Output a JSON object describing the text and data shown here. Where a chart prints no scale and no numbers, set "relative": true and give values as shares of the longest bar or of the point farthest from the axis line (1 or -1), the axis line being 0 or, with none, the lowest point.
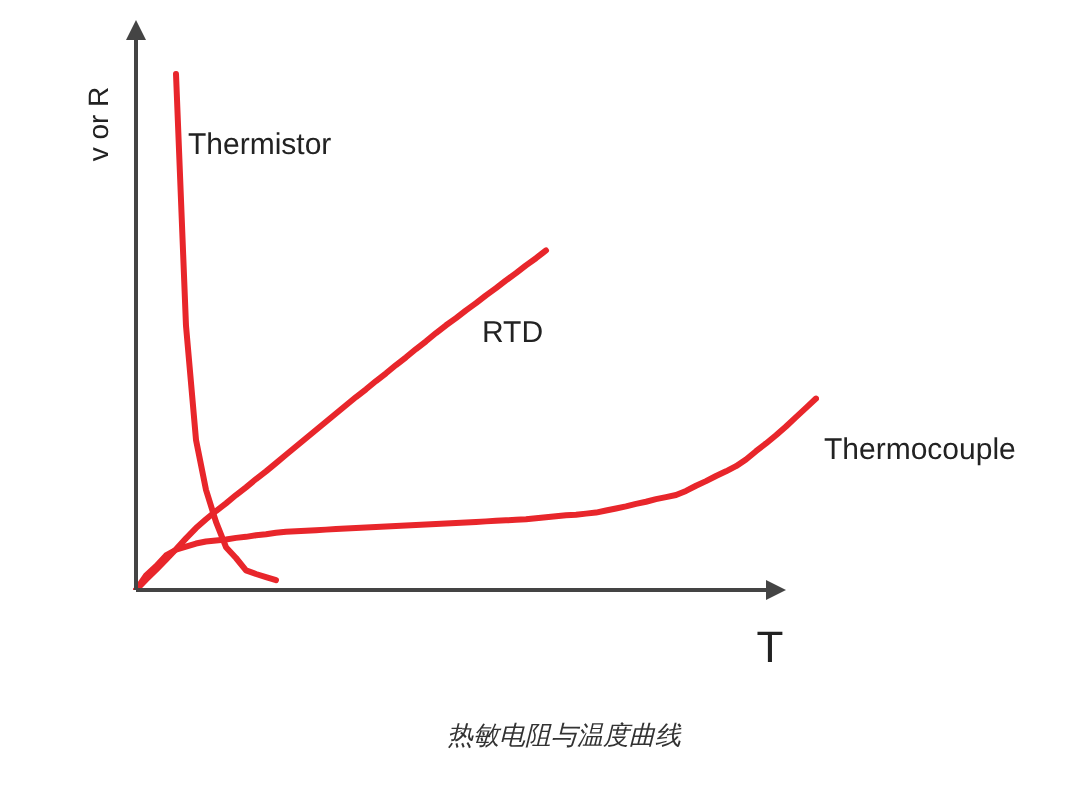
{
  "chart_data": {
    "type": "line",
    "relative": true,
    "xlabel": "T",
    "ylabel": "v or R",
    "legend": false,
    "marker": "none",
    "line_style": "solid",
    "categories": [
      null,
      null,
      null,
      null,
      null,
      null,
      null,
      null,
      null,
      null,
      null,
      null,
      null,
      null,
      null,
      null,
      null,
      null,
      null,
      null,
      null,
      null,
      null,
      null,
      null,
      null,
      null,
      null,
      null,
      null,
      null,
      null,
      null,
      null,
      null,
      null,
      null,
      null,
      null,
      null,
      null,
      null,
      null,
      null,
      null,
      null,
      null,
      null,
      null,
      null,
      null,
      null,
      null,
      null,
      null,
      null,
      null,
      null,
      null,
      null,
      null,
      null,
      null,
      null,
      null,
      null,
      null,
      null,
      null
    ],
    "series": [
      {
        "name": "Thermistor",
        "color": "#e8262b",
        "values": [
          null,
          null,
          null,
          null,
          1,
          0.512,
          0.291,
          0.194,
          0.132,
          0.083,
          0.062,
          0.038,
          0.031,
          0.025,
          0.019,
          null,
          null,
          null,
          null,
          null,
          null,
          null,
          null,
          null,
          null,
          null,
          null,
          null,
          null,
          null,
          null,
          null,
          null,
          null,
          null,
          null,
          null,
          null,
          null,
          null,
          null,
          null,
          null,
          null,
          null,
          null,
          null,
          null,
          null,
          null,
          null,
          null,
          null,
          null,
          null,
          null,
          null,
          null,
          null,
          null,
          null,
          null,
          null,
          null,
          null,
          null,
          null,
          null,
          null
        ]
      },
      {
        "name": "RTD",
        "color": "#e8262b",
        "values": [
          0,
          0.02,
          0.039,
          0.059,
          0.079,
          0.1,
          0.12,
          0.137,
          0.153,
          0.168,
          0.184,
          0.199,
          0.215,
          0.23,
          0.246,
          0.262,
          0.278,
          0.294,
          0.31,
          0.326,
          0.342,
          0.358,
          0.374,
          0.389,
          0.405,
          0.42,
          0.436,
          0.451,
          0.467,
          0.482,
          0.498,
          0.513,
          0.527,
          0.542,
          0.556,
          0.571,
          0.585,
          0.6,
          0.614,
          0.629,
          0.643,
          0.658,
          null,
          null,
          null,
          null,
          null,
          null,
          null,
          null,
          null,
          null,
          null,
          null,
          null,
          null,
          null,
          null,
          null,
          null,
          null,
          null,
          null,
          null,
          null,
          null,
          null,
          null,
          null
        ]
      },
      {
        "name": "Thermocouple",
        "color": "#e8262b",
        "values": [
          0,
          0.028,
          0.046,
          0.067,
          0.078,
          0.084,
          0.09,
          0.094,
          0.096,
          0.098,
          0.101,
          0.103,
          0.106,
          0.108,
          0.111,
          0.113,
          0.114,
          0.115,
          0.116,
          0.117,
          0.118,
          0.119,
          0.12,
          0.121,
          0.122,
          0.123,
          0.124,
          0.125,
          0.126,
          0.127,
          0.128,
          0.129,
          0.13,
          0.131,
          0.132,
          0.133,
          0.134,
          0.135,
          0.136,
          0.137,
          0.139,
          0.141,
          0.143,
          0.145,
          0.146,
          0.148,
          0.15,
          0.154,
          0.158,
          0.162,
          0.167,
          0.171,
          0.176,
          0.18,
          0.184,
          0.192,
          0.202,
          0.211,
          0.221,
          0.23,
          0.24,
          0.253,
          0.269,
          0.284,
          0.3,
          0.317,
          0.335,
          0.353,
          0.371
        ]
      }
    ],
    "annotations": [
      "热敏电阻与温度曲线"
    ]
  }
}
